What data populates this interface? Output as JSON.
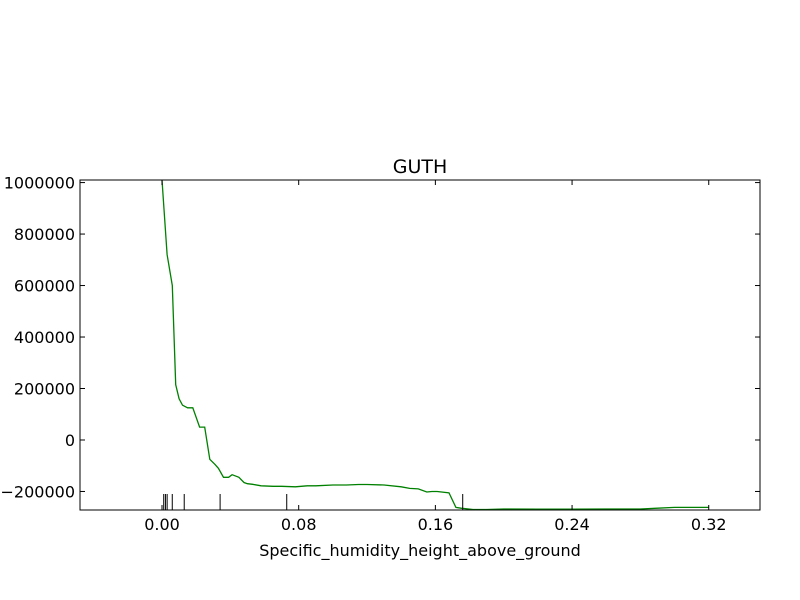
{
  "chart_data": {
    "type": "line",
    "title": "GUTH",
    "xlabel": "Specific_humidity_height_above_ground",
    "ylabel": "",
    "xlim": [
      -0.048,
      0.35
    ],
    "ylim": [
      -272000,
      1010000
    ],
    "x_ticks": [
      0.0,
      0.08,
      0.16,
      0.24,
      0.32
    ],
    "x_tick_labels": [
      "0.00",
      "0.08",
      "0.16",
      "0.24",
      "0.32"
    ],
    "y_ticks": [
      -200000,
      0,
      200000,
      400000,
      600000,
      800000,
      1000000
    ],
    "y_tick_labels": [
      "−200000",
      "0",
      "200000",
      "400000",
      "600000",
      "800000",
      "1000000"
    ],
    "grid": false,
    "series": [
      {
        "color": "#008000",
        "x": [
          0.0,
          0.003,
          0.006,
          0.008,
          0.01,
          0.012,
          0.015,
          0.018,
          0.022,
          0.025,
          0.028,
          0.031,
          0.033,
          0.036,
          0.039,
          0.041,
          0.045,
          0.048,
          0.05,
          0.053,
          0.058,
          0.065,
          0.07,
          0.078,
          0.085,
          0.09,
          0.1,
          0.108,
          0.115,
          0.12,
          0.13,
          0.14,
          0.145,
          0.15,
          0.155,
          0.158,
          0.161,
          0.168,
          0.172,
          0.175,
          0.182,
          0.19,
          0.2,
          0.22,
          0.24,
          0.26,
          0.28,
          0.29,
          0.3,
          0.32
        ],
        "y": [
          1010000,
          720000,
          600000,
          215000,
          160000,
          135000,
          125000,
          125000,
          50000,
          50000,
          -75000,
          -95000,
          -110000,
          -145000,
          -145000,
          -135000,
          -145000,
          -165000,
          -170000,
          -172000,
          -178000,
          -180000,
          -180000,
          -182000,
          -178000,
          -178000,
          -175000,
          -175000,
          -173000,
          -173000,
          -175000,
          -182000,
          -188000,
          -190000,
          -202000,
          -200000,
          -200000,
          -205000,
          -262000,
          -265000,
          -270000,
          -270000,
          -268000,
          -269000,
          -269000,
          -268000,
          -268000,
          -265000,
          -262000,
          -262000
        ]
      }
    ],
    "rug_x": [
      0.001,
      0.002,
      0.003,
      0.006,
      0.013,
      0.034,
      0.073,
      0.176
    ]
  }
}
